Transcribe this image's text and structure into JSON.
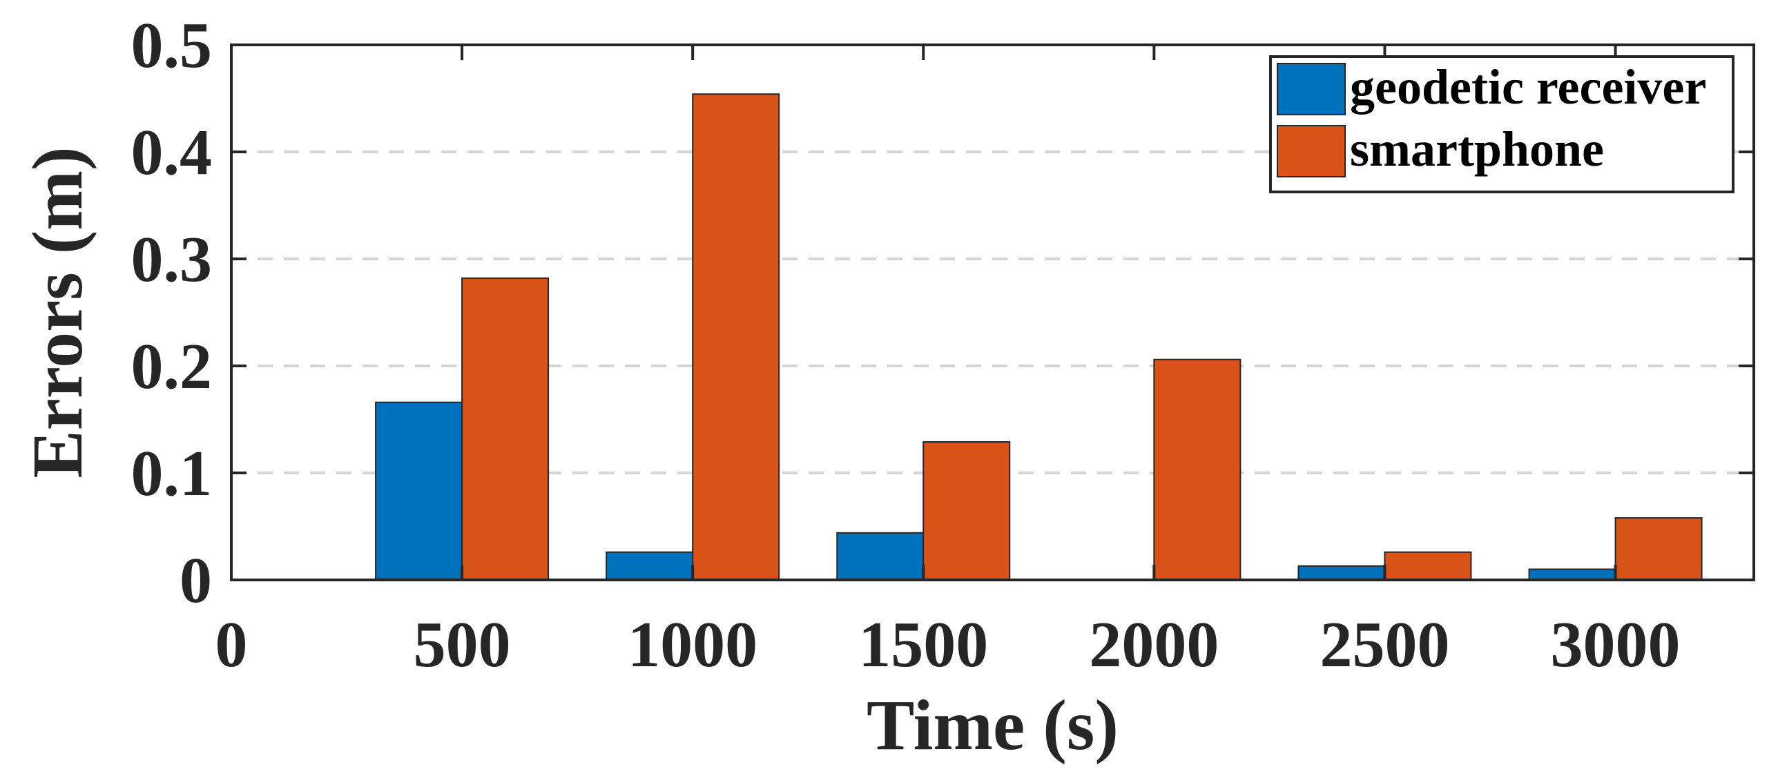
{
  "chart_data": {
    "type": "bar",
    "title": "",
    "xlabel": "Time (s)",
    "ylabel": "Errors (m)",
    "xlim": [
      0,
      3300
    ],
    "ylim": [
      0,
      0.5
    ],
    "x_ticks": [
      {
        "value": 0,
        "label": "0"
      },
      {
        "value": 500,
        "label": "500"
      },
      {
        "value": 1000,
        "label": "1000"
      },
      {
        "value": 1500,
        "label": "1500"
      },
      {
        "value": 2000,
        "label": "2000"
      },
      {
        "value": 2500,
        "label": "2500"
      },
      {
        "value": 3000,
        "label": "3000"
      }
    ],
    "y_ticks": [
      {
        "value": 0,
        "label": "0"
      },
      {
        "value": 0.1,
        "label": "0.1"
      },
      {
        "value": 0.2,
        "label": "0.2"
      },
      {
        "value": 0.3,
        "label": "0.3"
      },
      {
        "value": 0.4,
        "label": "0.4"
      },
      {
        "value": 0.5,
        "label": "0.5"
      }
    ],
    "grid": "y-dashed",
    "legend_position": "top-right",
    "categories": [
      500,
      1000,
      1500,
      2000,
      2500,
      3000
    ],
    "series": [
      {
        "name": "geodetic receiver",
        "color": "#0072BD",
        "values": [
          0.166,
          0.026,
          0.044,
          0.0,
          0.013,
          0.01
        ]
      },
      {
        "name": "smartphone",
        "color": "#D95319",
        "values": [
          0.282,
          0.454,
          0.129,
          0.206,
          0.026,
          0.058
        ]
      }
    ]
  }
}
